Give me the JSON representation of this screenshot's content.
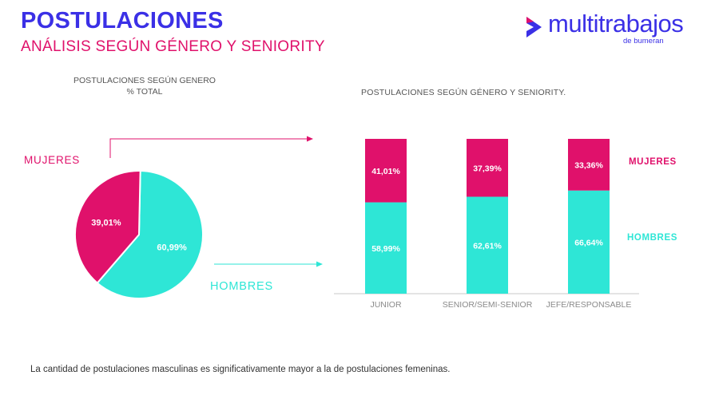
{
  "header": {
    "title": "POSTULACIONES",
    "subtitle": "ANÁLISIS SEGÚN GÉNERO Y SENIORITY"
  },
  "logo": {
    "text": "multitrabajos",
    "sub": "de bumeran"
  },
  "colors": {
    "mujeres": "#e0116b",
    "hombres": "#2ee6d6",
    "brand": "#3b30e6"
  },
  "chart_data": [
    {
      "type": "pie",
      "title": "POSTULACIONES SEGÚN GENERO",
      "subtitle": "% TOTAL",
      "slices": [
        {
          "label": "MUJERES",
          "value": 39.01,
          "display": "39,01%",
          "color": "#e0116b"
        },
        {
          "label": "HOMBRES",
          "value": 60.99,
          "display": "60,99%",
          "color": "#2ee6d6"
        }
      ]
    },
    {
      "type": "bar",
      "stacked": true,
      "title": "POSTULACIONES SEGÚN GÉNERO Y SENIORITY.",
      "categories": [
        "JUNIOR",
        "SENIOR/SEMI-SENIOR",
        "JEFE/RESPONSABLE"
      ],
      "series": [
        {
          "name": "HOMBRES",
          "values": [
            58.99,
            62.61,
            66.64
          ],
          "labels": [
            "58,99%",
            "62,61%",
            "66,64%"
          ],
          "color": "#2ee6d6"
        },
        {
          "name": "MUJERES",
          "values": [
            41.01,
            37.39,
            33.36
          ],
          "labels": [
            "41,01%",
            "37,39%",
            "33,36%"
          ],
          "color": "#e0116b"
        }
      ],
      "ylim": [
        0,
        100
      ],
      "legend": "right"
    }
  ],
  "footer": {
    "text": "La cantidad de postulaciones masculinas es significativamente mayor a la de postulaciones femeninas."
  }
}
